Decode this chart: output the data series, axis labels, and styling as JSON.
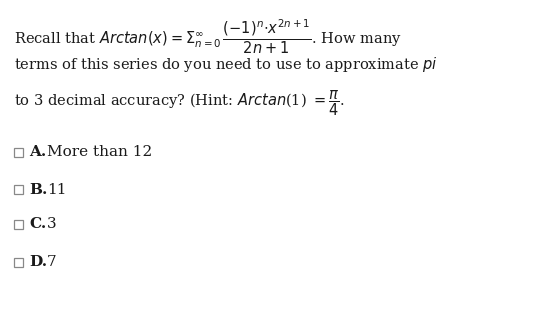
{
  "bg_color": "#ffffff",
  "text_color": "#1a1a1a",
  "figsize": [
    5.57,
    3.27
  ],
  "dpi": 100,
  "font_size_question": 10.5,
  "font_size_choices": 11.0,
  "choices": [
    {
      "label": "A.",
      "text": "More than 12"
    },
    {
      "label": "B.",
      "text": "11"
    },
    {
      "label": "C.",
      "text": "3"
    },
    {
      "label": "D.",
      "text": "7"
    }
  ]
}
